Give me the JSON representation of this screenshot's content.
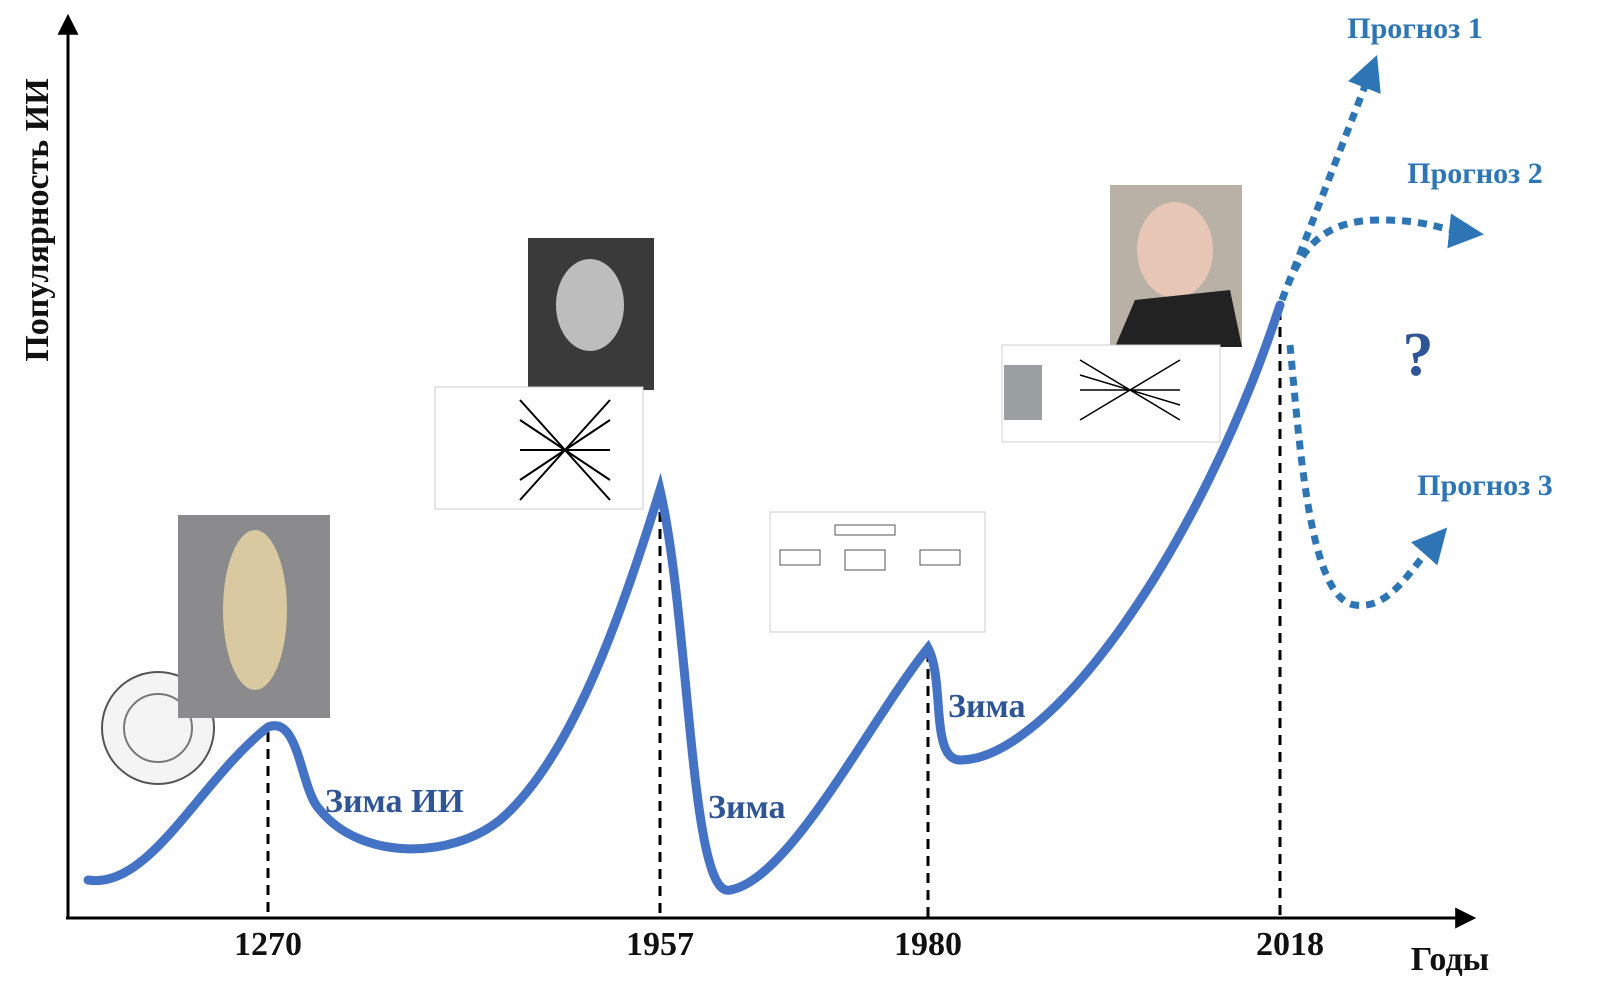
{
  "axes": {
    "y_label": "Популярность ИИ",
    "x_label": "Годы"
  },
  "years": [
    "1270",
    "1957",
    "1980",
    "2018"
  ],
  "annotations": [
    "Зима ИИ",
    "Зима",
    "Зима"
  ],
  "forecasts": [
    "Прогноз 1",
    "Прогноз 2",
    "Прогноз 3"
  ],
  "question": "?"
}
